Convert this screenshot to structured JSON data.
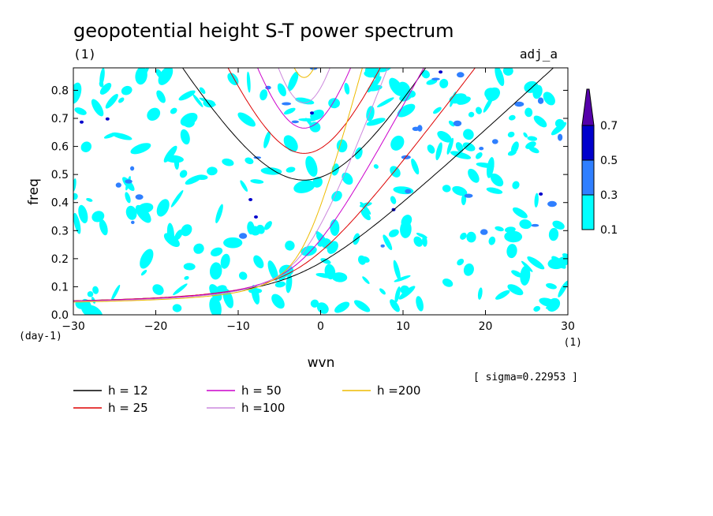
{
  "chart_data": {
    "type": "contour",
    "title": "geopotential height S-T power spectrum",
    "subtitle_left": "(1)",
    "subtitle_right": "adj_a",
    "xlabel": "wvn",
    "ylabel": "freq",
    "x_unit": "(1)",
    "y_unit": "(day-1)",
    "xlim": [
      -30,
      30
    ],
    "ylim": [
      0,
      0.88
    ],
    "x_ticks": [
      -30,
      -20,
      -10,
      0,
      10,
      20,
      30
    ],
    "y_ticks": [
      0.0,
      0.1,
      0.2,
      0.3,
      0.4,
      0.5,
      0.6,
      0.7,
      0.8
    ],
    "sigma_note": "[ sigma=0.22953 ]",
    "colorbar": {
      "levels": [
        0.1,
        0.3,
        0.5,
        0.7
      ],
      "colors": [
        "#00ffff",
        "#2f7fff",
        "#0000cc",
        "#5500aa"
      ]
    },
    "series": [
      {
        "name": "h = 12",
        "h": 12,
        "color": "#000000"
      },
      {
        "name": "h = 25",
        "h": 25,
        "color": "#dd0000"
      },
      {
        "name": "h = 50",
        "h": 50,
        "color": "#cc00cc"
      },
      {
        "name": "h =100",
        "h": 100,
        "color": "#cc88dd"
      },
      {
        "name": "h =200",
        "h": 200,
        "color": "#eebb00"
      }
    ]
  }
}
